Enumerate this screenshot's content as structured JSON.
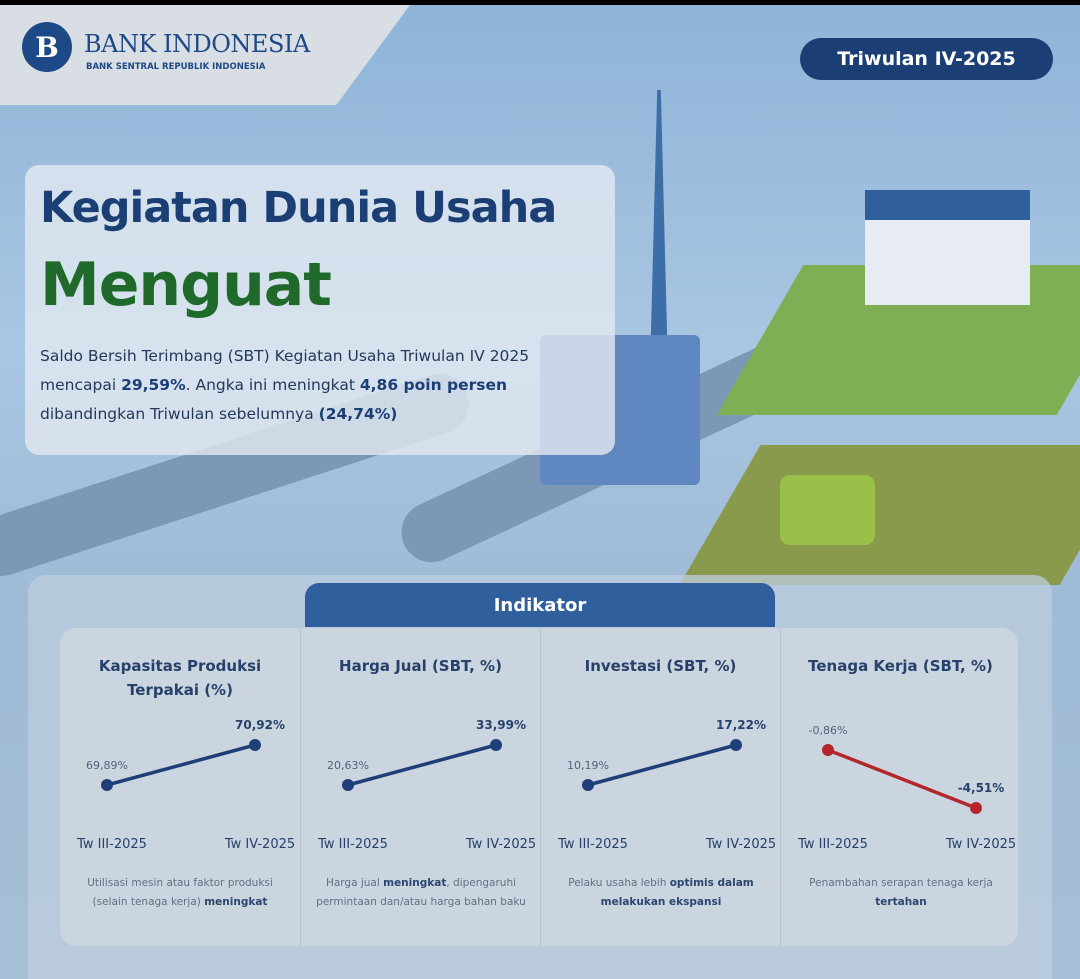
{
  "header": {
    "logo_text": "B",
    "bank_name": "BANK INDONESIA",
    "bank_subtitle": "BANK SENTRAL REPUBLIK INDONESIA",
    "period_badge": "Triwulan IV-2025"
  },
  "hero": {
    "title_line1": "Kegiatan Dunia Usaha",
    "title_line2": "Menguat",
    "para_1": "Saldo Bersih Terimbang (SBT) Kegiatan Usaha Triwulan IV 2025 mencapai ",
    "para_b1": "29,59%",
    "para_2": ". Angka ini meningkat ",
    "para_b2": "4,86 poin persen",
    "para_3": " dibandingkan Triwulan sebelumnya ",
    "para_b3": "(24,74%)"
  },
  "indicator_tab": "Indikator",
  "colors": {
    "navy": "#1b3f75",
    "green": "#1f6a2a",
    "increase": "#1e3f78",
    "decrease": "#b3262b"
  },
  "chart_data": [
    {
      "type": "line",
      "title": "Kapasitas Produksi Terpakai (%)",
      "categories": [
        "Tw III-2025",
        "Tw IV-2025"
      ],
      "values": [
        69.89,
        70.92
      ],
      "labels": [
        "69,89%",
        "70,92%"
      ],
      "desc_pre": "Utilisasi mesin atau faktor produksi (selain tenaga kerja) ",
      "desc_bold": "meningkat",
      "desc_post": ""
    },
    {
      "type": "line",
      "title": "Harga Jual (SBT, %)",
      "categories": [
        "Tw III-2025",
        "Tw IV-2025"
      ],
      "values": [
        20.63,
        33.99
      ],
      "labels": [
        "20,63%",
        "33,99%"
      ],
      "desc_pre": "Harga jual ",
      "desc_bold": "meningkat",
      "desc_post": ", dipengaruhi permintaan dan/atau harga bahan baku"
    },
    {
      "type": "line",
      "title": "Investasi (SBT, %)",
      "categories": [
        "Tw III-2025",
        "Tw IV-2025"
      ],
      "values": [
        10.19,
        17.22
      ],
      "labels": [
        "10,19%",
        "17,22%"
      ],
      "desc_pre": "Pelaku usaha lebih ",
      "desc_bold": "optimis dalam melakukan ekspansi",
      "desc_post": ""
    },
    {
      "type": "line",
      "title": "Tenaga Kerja (SBT, %)",
      "categories": [
        "Tw III-2025",
        "Tw IV-2025"
      ],
      "values": [
        -0.86,
        -4.51
      ],
      "labels": [
        "-0,86%",
        "-4,51%"
      ],
      "desc_pre": "Penambahan serapan tenaga kerja ",
      "desc_bold": "tertahan",
      "desc_post": ""
    }
  ]
}
